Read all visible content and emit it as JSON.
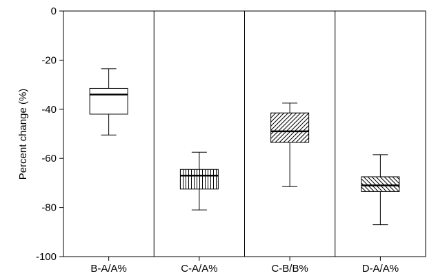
{
  "chart_data": {
    "type": "box",
    "ylabel": "Percent change (%)",
    "ylim": [
      -100,
      0
    ],
    "yticks": [
      0,
      -20,
      -40,
      -60,
      -80,
      -100
    ],
    "ytick_labels": [
      "0",
      "-20",
      "-40",
      "-60",
      "-80",
      "-100"
    ],
    "categories": [
      "B-A/A%",
      "C-A/A%",
      "C-B/B%",
      "D-A/A%"
    ],
    "boxes": [
      {
        "category": "B-A/A%",
        "whisker_high": -23.5,
        "q3": -31.5,
        "median": -34,
        "q1": -42,
        "whisker_low": -50.5,
        "pattern": "none"
      },
      {
        "category": "C-A/A%",
        "whisker_high": -57.5,
        "q3": -64.5,
        "median": -67,
        "q1": -72.5,
        "whisker_low": -81,
        "pattern": "vertical"
      },
      {
        "category": "C-B/B%",
        "whisker_high": -37.5,
        "q3": -41.5,
        "median": -49,
        "q1": -53.5,
        "whisker_low": -71.5,
        "pattern": "diagonal-up"
      },
      {
        "category": "D-A/A%",
        "whisker_high": -58.5,
        "q3": -67.5,
        "median": -71,
        "q1": -73.5,
        "whisker_low": -87,
        "pattern": "diagonal-down"
      }
    ],
    "grid": false,
    "category_dividers": true
  }
}
